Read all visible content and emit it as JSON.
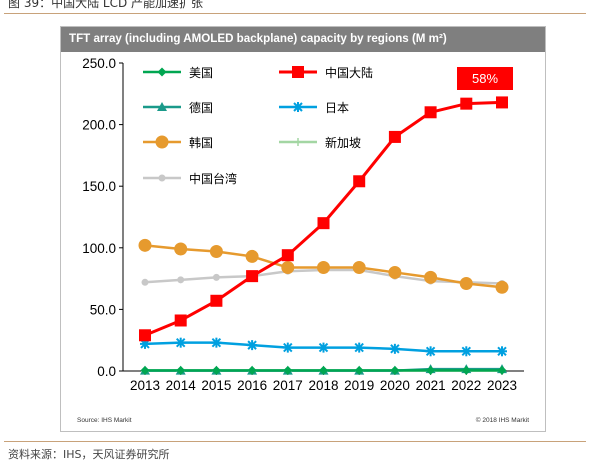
{
  "caption": "图 39：中国大陆 LCD 产能加速扩张",
  "source_text": "资料来源：IHS，天风证券研究所",
  "chart_data": {
    "type": "line",
    "title": "TFT array (including AMOLED backplane) capacity by regions (M m²)",
    "x": [
      2013,
      2014,
      2015,
      2016,
      2017,
      2018,
      2019,
      2020,
      2021,
      2022,
      2023
    ],
    "ylim": [
      0,
      250
    ],
    "yticks": [
      "0.0",
      "50.0",
      "100.0",
      "150.0",
      "200.0",
      "250.0"
    ],
    "grid": false,
    "legend_position": "top-left",
    "series": [
      {
        "name": "美国",
        "color": "#00a651",
        "marker": "diamond",
        "values": [
          0.5,
          0.5,
          0.5,
          0.5,
          0.5,
          0.5,
          0.5,
          0.5,
          0.5,
          0.5,
          0.5
        ]
      },
      {
        "name": "中国大陆",
        "color": "#ff0000",
        "marker": "square",
        "values": [
          29,
          41,
          57,
          77,
          94,
          120,
          154,
          190,
          210,
          217,
          218
        ]
      },
      {
        "name": "德国",
        "color": "#1a9a8a",
        "marker": "triangle",
        "values": [
          0.3,
          0.3,
          0.3,
          0.3,
          0.3,
          0.3,
          0.3,
          0.3,
          1.5,
          1.5,
          1.5
        ]
      },
      {
        "name": "日本",
        "color": "#00a0e0",
        "marker": "star",
        "values": [
          22,
          23,
          23,
          21,
          19,
          19,
          19,
          18,
          16,
          16,
          16
        ]
      },
      {
        "name": "韩国",
        "color": "#e69a2e",
        "marker": "circle",
        "values": [
          102,
          99,
          97,
          93,
          84,
          84,
          84,
          80,
          76,
          71,
          68
        ]
      },
      {
        "name": "新加坡",
        "color": "#a3d6a3",
        "marker": "plus",
        "values": [
          0.2,
          0.2,
          0.2,
          0.2,
          0.2,
          0.2,
          0.2,
          0.2,
          0.2,
          0.2,
          0.2
        ]
      },
      {
        "name": "中国台湾",
        "color": "#c8c8c8",
        "marker": "circle-small",
        "values": [
          72,
          74,
          76,
          77,
          81,
          82,
          82,
          77,
          73,
          72,
          71
        ]
      }
    ],
    "annotation": {
      "text": "58%",
      "color": "#ff0000"
    },
    "source_note": "Source: IHS Markit",
    "copyright": "© 2018 IHS Markit"
  }
}
